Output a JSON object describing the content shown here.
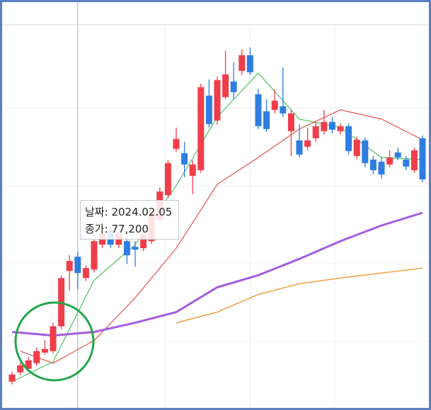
{
  "chart_data": {
    "type": "candlestick",
    "ylim": [
      69600,
      91200
    ],
    "up_color": "#ef3d4a",
    "down_color": "#2f7de1",
    "open": [
      71080,
      71600,
      71800,
      72120,
      72720,
      72800,
      74200,
      77320,
      78120,
      76920,
      77400,
      78800,
      79600,
      78800,
      79000,
      78680,
      78600,
      79000,
      80200,
      81600,
      84200,
      83960,
      82680,
      83000,
      87200,
      85800,
      87120,
      88000,
      88600,
      89480,
      87280,
      86320,
      86400,
      86600,
      85200,
      84680,
      84320,
      84800,
      85200,
      85720,
      85200,
      85480,
      83800,
      84680,
      83600,
      83480,
      83320,
      84000,
      83600,
      83000,
      84800
    ],
    "high": [
      71640,
      72160,
      72440,
      73000,
      73400,
      74400,
      77080,
      78200,
      78400,
      77640,
      79160,
      79640,
      79800,
      79560,
      79200,
      79000,
      79600,
      80760,
      82040,
      83560,
      85400,
      84600,
      83560,
      87880,
      88120,
      88280,
      89720,
      89080,
      89800,
      89920,
      87600,
      87000,
      87560,
      88800,
      86400,
      85600,
      85400,
      85720,
      86400,
      86000,
      85640,
      85640,
      84880,
      84840,
      83800,
      83720,
      84120,
      84280,
      83800,
      84280,
      84960
    ],
    "low": [
      70920,
      71440,
      71640,
      71960,
      72600,
      72680,
      74040,
      76200,
      76280,
      76760,
      77240,
      78600,
      78600,
      78600,
      77720,
      77560,
      78440,
      78840,
      80040,
      81440,
      84040,
      82600,
      81640,
      82840,
      85400,
      85560,
      87000,
      87000,
      88360,
      88360,
      85320,
      85160,
      86200,
      86000,
      83800,
      83720,
      84120,
      84600,
      85000,
      85080,
      85000,
      83880,
      83640,
      83160,
      82760,
      82520,
      83160,
      83560,
      83000,
      82840,
      82320
    ],
    "close": [
      71480,
      72000,
      72280,
      72800,
      72920,
      74200,
      76920,
      77880,
      77200,
      77480,
      79000,
      79400,
      78800,
      79400,
      78200,
      78520,
      79400,
      80600,
      81800,
      83400,
      84760,
      83320,
      83320,
      87680,
      85600,
      88080,
      88400,
      87400,
      89480,
      88520,
      85480,
      85320,
      86920,
      86200,
      86200,
      83880,
      84680,
      85480,
      85720,
      85280,
      85480,
      84080,
      84720,
      83400,
      83000,
      82760,
      83720,
      83720,
      83200,
      84120,
      82480
    ],
    "lines": [
      {
        "color": "#5cc46a",
        "width": 1.3,
        "x": [
          0,
          5,
          10,
          15,
          20,
          25,
          30,
          35,
          40,
          45,
          50
        ],
        "values": [
          71080,
          72200,
          76800,
          78800,
          82120,
          86000,
          88480,
          85880,
          85400,
          83720,
          83600
        ]
      },
      {
        "color": "#e0524f",
        "width": 1.2,
        "x": [
          1,
          5,
          10,
          15,
          20,
          25,
          30,
          35,
          40,
          45,
          50
        ],
        "values": [
          72800,
          72120,
          73400,
          75800,
          78600,
          82200,
          83720,
          85320,
          86400,
          85880,
          84720
        ]
      },
      {
        "color": "#a25ce0",
        "width": 3,
        "x": [
          0,
          5,
          10,
          15,
          20,
          25,
          30,
          35,
          40,
          45,
          50
        ],
        "values": [
          73880,
          73680,
          73880,
          74400,
          75000,
          76400,
          77080,
          78000,
          79000,
          79880,
          80600
        ]
      },
      {
        "color": "#f0a048",
        "width": 1.5,
        "x": [
          20,
          25,
          30,
          35,
          40,
          45,
          50
        ],
        "values": [
          74400,
          75000,
          76000,
          76600,
          76920,
          77200,
          77480
        ]
      }
    ],
    "crosshair_index": 8,
    "tooltip": {
      "date_label": "날짜:",
      "date": "2024.02.05",
      "close_label": "종가:",
      "close": {
        "value": 77200,
        "label": "77,200"
      }
    }
  }
}
